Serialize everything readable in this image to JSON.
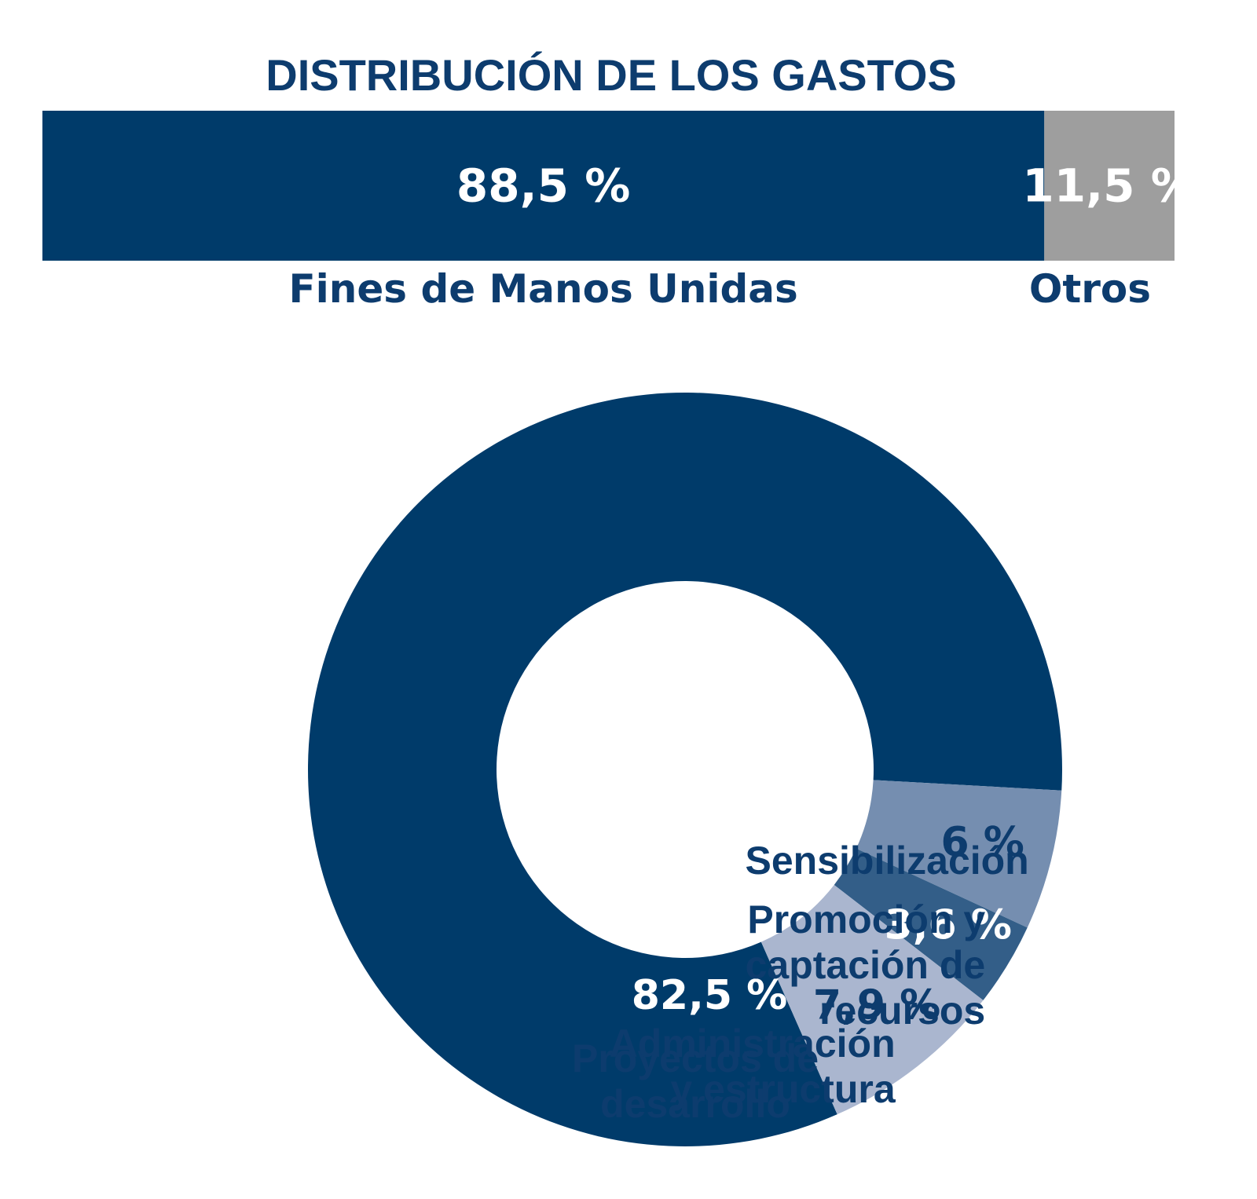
{
  "chart_data": [
    {
      "type": "bar",
      "title": "DISTRIBUCIÓN DE LOS GASTOS",
      "orientation": "horizontal-stacked",
      "series": [
        {
          "name": "Fines de Manos Unidas",
          "value": 88.5,
          "value_label": "88,5 %",
          "color": "#003b6a"
        },
        {
          "name": "Otros",
          "value": 11.5,
          "value_label": "11,5 %",
          "color": "#9e9e9e"
        }
      ]
    },
    {
      "type": "pie",
      "donut": true,
      "slices": [
        {
          "label": "Proyectos de desarrollo",
          "label_lines": [
            "Proyectos de",
            "desarrollo"
          ],
          "value": 82.5,
          "value_label": "82,5 %",
          "color": "#003b6a",
          "text_color": "#ffffff"
        },
        {
          "label": "Sensibilización",
          "label_lines": [
            "Sensibilización"
          ],
          "value": 6,
          "value_label": "6 %",
          "color": "#758eb0",
          "text_color": "#0d3c6e"
        },
        {
          "label": "Promoción y captación de recursos",
          "label_lines": [
            "Promoción y",
            "captación de",
            "recursos"
          ],
          "value": 3.6,
          "value_label": "3,6 %",
          "color": "#335e88",
          "text_color": "#ffffff"
        },
        {
          "label": "Administración y estructura",
          "label_lines": [
            "Administración",
            "y estructura"
          ],
          "value": 7.9,
          "value_label": "7,9 %",
          "color": "#aab6cf",
          "text_color": "#0d3c6e"
        }
      ]
    }
  ]
}
